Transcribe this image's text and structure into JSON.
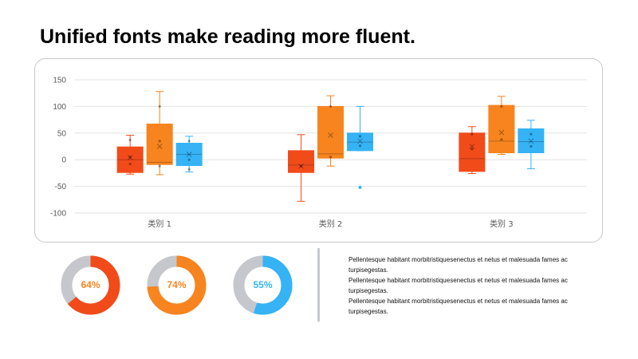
{
  "title": "Unified fonts make reading more fluent.",
  "colors": {
    "red": "#f24b1a",
    "orange": "#f7841f",
    "blue": "#35b3f5",
    "donut_track": "#c5c7cc",
    "grid": "#e3e3e3",
    "panel_border": "#c8c8c8"
  },
  "chart_data": {
    "type": "box",
    "title": "",
    "xlabel": "",
    "ylabel": "",
    "ylim": [
      -100,
      150
    ],
    "yticks": [
      -100,
      -50,
      0,
      50,
      100,
      150
    ],
    "grid": true,
    "categories": [
      "类别 1",
      "类别 2",
      "类别 3"
    ],
    "series": [
      {
        "color": "#f24b1a",
        "boxes": [
          {
            "min": -27,
            "q1": -24,
            "median": 0,
            "q3": 24,
            "max": 46,
            "mean": 4,
            "points": [
              37,
              5,
              -8
            ],
            "outliers": []
          },
          {
            "min": -78,
            "q1": -24,
            "median": -10,
            "q3": 17,
            "max": 47,
            "mean": -12,
            "points": [
              -12
            ],
            "outliers": []
          },
          {
            "min": -26,
            "q1": -22,
            "median": 2,
            "q3": 50,
            "max": 62,
            "mean": 25,
            "points": [
              48,
              20
            ],
            "outliers": []
          }
        ]
      },
      {
        "color": "#f7841f",
        "boxes": [
          {
            "min": -28,
            "q1": -9,
            "median": -5,
            "q3": 67,
            "max": 128,
            "mean": 25,
            "points": [
              100,
              35,
              -12
            ],
            "outliers": []
          },
          {
            "min": -12,
            "q1": 3,
            "median": 11,
            "q3": 100,
            "max": 120,
            "mean": 46,
            "points": [
              100,
              5
            ],
            "outliers": []
          },
          {
            "min": 10,
            "q1": 13,
            "median": 35,
            "q3": 102,
            "max": 119,
            "mean": 51,
            "points": [
              100,
              38
            ],
            "outliers": []
          }
        ]
      },
      {
        "color": "#35b3f5",
        "boxes": [
          {
            "min": -23,
            "q1": -11,
            "median": 10,
            "q3": 31,
            "max": 44,
            "mean": 10,
            "points": [
              35,
              0,
              -18
            ],
            "outliers": []
          },
          {
            "min": 17,
            "q1": 17,
            "median": 33,
            "q3": 50,
            "max": 100,
            "mean": 35,
            "points": [
              44,
              26
            ],
            "outliers": [
              -52
            ]
          },
          {
            "min": -17,
            "q1": 13,
            "median": 34,
            "q3": 58,
            "max": 74,
            "mean": 35,
            "points": [
              48,
              25
            ],
            "outliers": []
          }
        ]
      }
    ]
  },
  "donuts": [
    {
      "value": 64,
      "label": "64%",
      "color": "#f24b1a",
      "text_color": "#f7841f"
    },
    {
      "value": 74,
      "label": "74%",
      "color": "#f7841f",
      "text_color": "#f7841f"
    },
    {
      "value": 55,
      "label": "55%",
      "color": "#35b3f5",
      "text_color": "#35b3f5"
    }
  ],
  "paragraphs": [
    {
      "line1": "Pellentesque habitant morbitristiquesenectus et netus et malesuada fames ac",
      "line2": "turpisegestas."
    },
    {
      "line1": "Pellentesque habitant morbitristiquesenectus et netus et malesuada fames ac",
      "line2": "turpisegestas."
    },
    {
      "line1": "Pellentesque habitant morbitristiquesenectus et netus et malesuada fames ac",
      "line2": "turpisegestas."
    }
  ]
}
